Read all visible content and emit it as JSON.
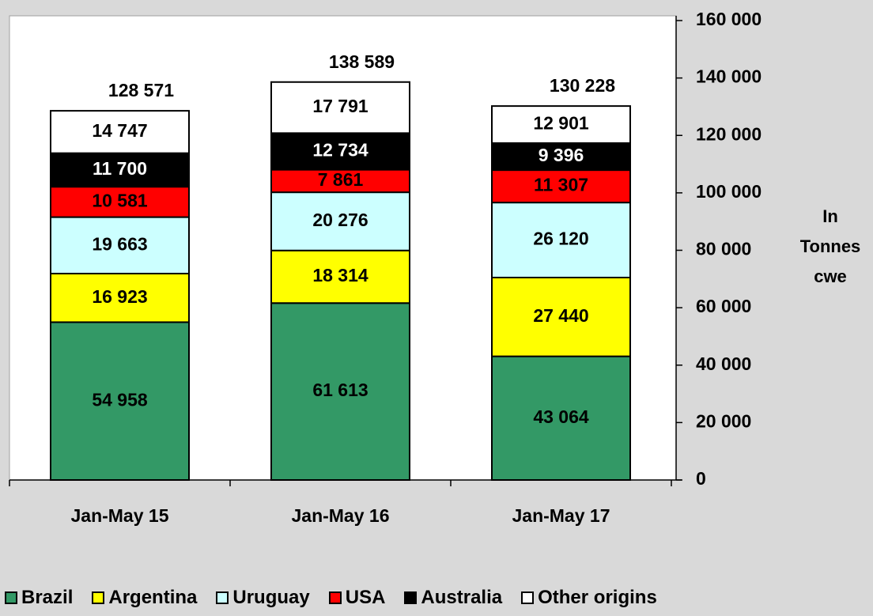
{
  "chart_data": {
    "type": "stacked_bar",
    "categories": [
      "Jan-May 15",
      "Jan-May 16",
      "Jan-May 17"
    ],
    "series": [
      {
        "name": "Brazil",
        "color": "#339966",
        "label_color": "#000000",
        "values": [
          54958,
          61613,
          43064
        ],
        "value_labels": [
          "54 958",
          "61 613",
          "43 064"
        ]
      },
      {
        "name": "Argentina",
        "color": "#ffff00",
        "label_color": "#000000",
        "values": [
          16923,
          18314,
          27440
        ],
        "value_labels": [
          "16 923",
          "18 314",
          "27 440"
        ]
      },
      {
        "name": "Uruguay",
        "color": "#ccffff",
        "label_color": "#000000",
        "values": [
          19663,
          20276,
          26120
        ],
        "value_labels": [
          "19 663",
          "20 276",
          "26 120"
        ]
      },
      {
        "name": "USA",
        "color": "#ff0000",
        "label_color": "#000000",
        "values": [
          10581,
          7861,
          11307
        ],
        "value_labels": [
          "10 581",
          "7 861",
          "11 307"
        ]
      },
      {
        "name": "Australia",
        "color": "#000000",
        "label_color": "#ffffff",
        "values": [
          11700,
          12734,
          9396
        ],
        "value_labels": [
          "11 700",
          "12 734",
          "9 396"
        ]
      },
      {
        "name": "Other origins",
        "color": "#ffffff",
        "label_color": "#000000",
        "values": [
          14747,
          17791,
          12901
        ],
        "value_labels": [
          "14 747",
          "17 791",
          "12 901"
        ]
      }
    ],
    "totals": [
      128571,
      138589,
      130228
    ],
    "total_labels": [
      "128 571",
      "138 589",
      "130 228"
    ],
    "y_label": "In Tonnes cwe",
    "ylim": [
      0,
      160000
    ],
    "yticks": [
      {
        "value": 0,
        "label": "0"
      },
      {
        "value": 20000,
        "label": "20 000"
      },
      {
        "value": 40000,
        "label": "40 000"
      },
      {
        "value": 60000,
        "label": "60 000"
      },
      {
        "value": 80000,
        "label": "80 000"
      },
      {
        "value": 100000,
        "label": "100 000"
      },
      {
        "value": 120000,
        "label": "120 000"
      },
      {
        "value": 140000,
        "label": "140 000"
      },
      {
        "value": 160000,
        "label": "160 000"
      }
    ]
  }
}
